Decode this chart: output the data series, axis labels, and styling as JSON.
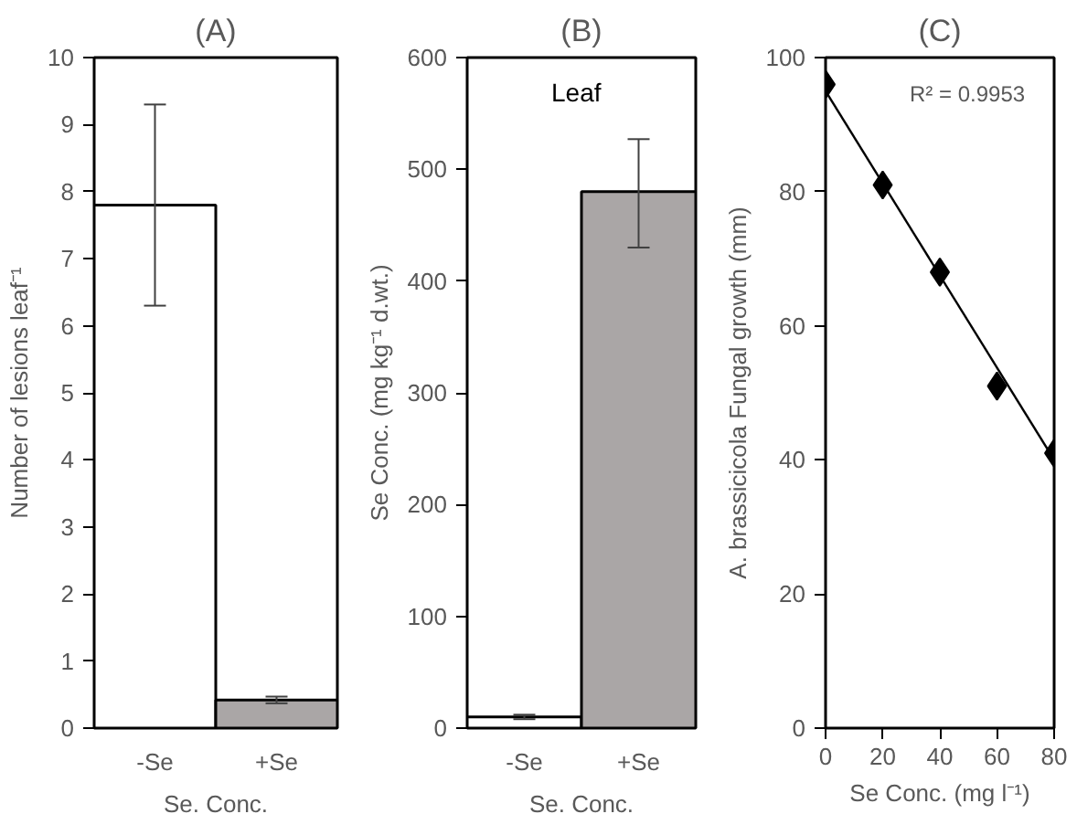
{
  "chart_data": [
    {
      "type": "bar",
      "title": "(A)",
      "xlabel": "Se. Conc.",
      "ylabel": "Number of lesions leaf⁻¹",
      "categories": [
        "-Se",
        "+Se"
      ],
      "values": [
        7.8,
        0.42
      ],
      "colors": [
        "#ffffff",
        "#aaa6a6"
      ],
      "errors": [
        [
          6.3,
          9.3
        ],
        [
          0.37,
          0.47
        ]
      ],
      "ylim": [
        0,
        10
      ],
      "yticks": [
        0,
        1,
        2,
        3,
        4,
        5,
        6,
        7,
        8,
        9,
        10
      ],
      "grid": false
    },
    {
      "type": "bar",
      "title": "(B)",
      "xlabel": "Se. Conc.",
      "ylabel": "Se Conc. (mg kg⁻¹ d.wt.)",
      "categories": [
        "-Se",
        "+Se"
      ],
      "values": [
        10,
        480
      ],
      "colors": [
        "#ffffff",
        "#aaa6a6"
      ],
      "errors": [
        [
          8,
          12
        ],
        [
          430,
          527
        ]
      ],
      "ylim": [
        0,
        600
      ],
      "yticks": [
        0,
        100,
        200,
        300,
        400,
        500,
        600
      ],
      "annotations": [
        "Leaf"
      ],
      "grid": false
    },
    {
      "type": "scatter",
      "title": "(C)",
      "xlabel": "Se Conc. (mg l⁻¹)",
      "ylabel": "A. brassicicola Fungal growth (mm)",
      "xlim": [
        0,
        80
      ],
      "xticks": [
        0,
        20,
        40,
        60,
        80
      ],
      "ylim": [
        0,
        100
      ],
      "yticks": [
        0,
        20,
        40,
        60,
        80,
        100
      ],
      "grid": false,
      "annotations": [
        "R² = 0.9953"
      ],
      "series": [
        {
          "type": "scatter",
          "marker": "diamond",
          "color": "#000000",
          "x": [
            0,
            20,
            40,
            60,
            80
          ],
          "values": [
            96,
            81,
            68,
            51,
            41
          ]
        },
        {
          "type": "line",
          "marker": "none",
          "color": "#000000",
          "x": [
            0,
            80
          ],
          "values": [
            95,
            40
          ]
        }
      ]
    }
  ]
}
